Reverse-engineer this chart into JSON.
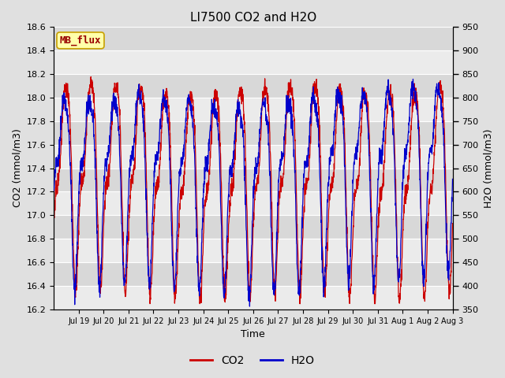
{
  "title": "LI7500 CO2 and H2O",
  "xlabel": "Time",
  "ylabel_left": "CO2 (mmol/m3)",
  "ylabel_right": "H2O (mmol/m3)",
  "co2_ylim": [
    16.2,
    18.6
  ],
  "h2o_ylim": [
    350,
    950
  ],
  "co2_yticks": [
    16.2,
    16.4,
    16.6,
    16.8,
    17.0,
    17.2,
    17.4,
    17.6,
    17.8,
    18.0,
    18.2,
    18.4,
    18.6
  ],
  "h2o_yticks": [
    350,
    400,
    450,
    500,
    550,
    600,
    650,
    700,
    750,
    800,
    850,
    900,
    950
  ],
  "co2_color": "#cc0000",
  "h2o_color": "#0000cc",
  "fig_bg_color": "#e0e0e0",
  "plot_bg_light": "#ebebeb",
  "plot_bg_dark": "#d8d8d8",
  "watermark_text": "MB_flux",
  "watermark_bg": "#ffffaa",
  "watermark_border": "#c8a000",
  "watermark_text_color": "#990000",
  "xtick_labels": [
    "Jul 19",
    "Jul 20",
    "Jul 21",
    "Jul 22",
    "Jul 23",
    "Jul 24",
    "Jul 25",
    "Jul 26",
    "Jul 27",
    "Jul 28",
    "Jul 29",
    "Jul 30",
    "Jul 31",
    "Aug 1",
    "Aug 2",
    "Aug 3"
  ],
  "n_points": 2000,
  "legend_co2": "CO2",
  "legend_h2o": "H2O",
  "title_fontsize": 11,
  "axis_fontsize": 9,
  "tick_fontsize": 8
}
